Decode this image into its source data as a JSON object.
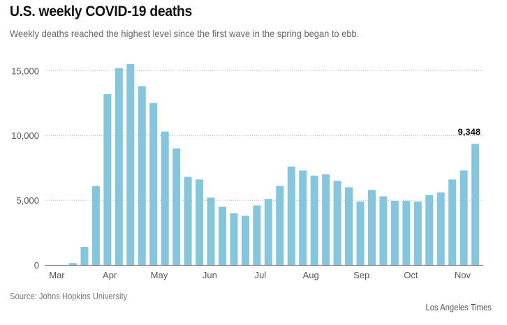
{
  "header": {
    "title": "U.S. weekly COVID-19 deaths",
    "subtitle": "Weekly deaths reached the highest level since the first wave in the spring began to ebb."
  },
  "footer": {
    "source": "Source: Johns Hopkins University",
    "credit": "Los Angeles Times"
  },
  "colors": {
    "bar": "#84c6de",
    "grid": "#aaaaaa",
    "axis": "#888888"
  },
  "chart_data": {
    "type": "bar",
    "title": "U.S. weekly COVID-19 deaths",
    "subtitle": "Weekly deaths reached the highest level since the first wave in the spring began to ebb.",
    "xlabel": "",
    "ylabel": "",
    "ylim": [
      0,
      15000
    ],
    "grid": true,
    "yticks": [
      {
        "value": 0,
        "label": "0"
      },
      {
        "value": 5000,
        "label": "5,000"
      },
      {
        "value": 10000,
        "label": "10,000"
      },
      {
        "value": 15000,
        "label": "15,000"
      }
    ],
    "month_labels": [
      {
        "label": "Mar",
        "week_index": -1.4
      },
      {
        "label": "Apr",
        "week_index": 3.2
      },
      {
        "label": "May",
        "week_index": 7.5
      },
      {
        "label": "Jun",
        "week_index": 11.9
      },
      {
        "label": "Jul",
        "week_index": 16.3
      },
      {
        "label": "Aug",
        "week_index": 20.7
      },
      {
        "label": "Sep",
        "week_index": 25.1
      },
      {
        "label": "Oct",
        "week_index": 29.4
      },
      {
        "label": "Nov",
        "week_index": 33.9
      }
    ],
    "values": [
      150,
      1400,
      6100,
      13200,
      15200,
      15500,
      13800,
      12500,
      10300,
      9000,
      6800,
      6600,
      5200,
      4500,
      4000,
      3800,
      4600,
      5100,
      6100,
      7600,
      7300,
      6900,
      7000,
      6500,
      6000,
      4900,
      5800,
      5300,
      4950,
      4950,
      4900,
      5400,
      5600,
      6600,
      7300,
      9348
    ],
    "annotation": {
      "label": "9,348",
      "week_index": 35
    }
  }
}
